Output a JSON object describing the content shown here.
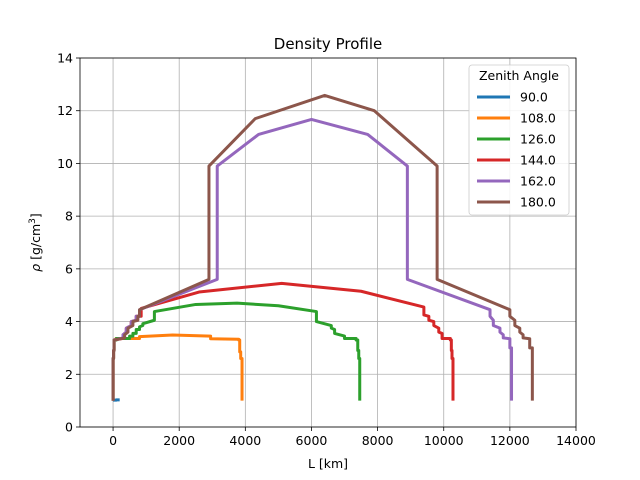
{
  "chart_data": {
    "type": "line",
    "title": "Density Profile",
    "xlabel": "L [km]",
    "ylabel_symbol": "ρ",
    "ylabel_unit": "[g/cm",
    "ylabel_sup": "3",
    "ylabel_close": "]",
    "xlim": [
      -1000,
      14000
    ],
    "ylim": [
      0,
      14
    ],
    "xticks": [
      0,
      2000,
      4000,
      6000,
      8000,
      10000,
      12000,
      14000
    ],
    "yticks": [
      0,
      2,
      4,
      6,
      8,
      10,
      12,
      14
    ],
    "grid": true,
    "legend": {
      "title": "Zenith Angle",
      "location": "upper right"
    },
    "series": [
      {
        "name": "90.0",
        "color": "#1f77b4",
        "points": [
          [
            0,
            1.02
          ],
          [
            100,
            1.02
          ],
          [
            100,
            1.03
          ],
          [
            200,
            1.03
          ]
        ]
      },
      {
        "name": "108.0",
        "color": "#ff7f0e",
        "points": [
          [
            0,
            1.0
          ],
          [
            0,
            2.6
          ],
          [
            15,
            2.6
          ],
          [
            15,
            2.9
          ],
          [
            30,
            2.9
          ],
          [
            30,
            3.3
          ],
          [
            90,
            3.3
          ],
          [
            90,
            3.36
          ],
          [
            800,
            3.36
          ],
          [
            800,
            3.43
          ],
          [
            1800,
            3.49
          ],
          [
            2950,
            3.45
          ],
          [
            2950,
            3.35
          ],
          [
            3800,
            3.33
          ],
          [
            3800,
            3.3
          ],
          [
            3830,
            3.3
          ],
          [
            3830,
            2.85
          ],
          [
            3860,
            2.85
          ],
          [
            3860,
            2.6
          ],
          [
            3900,
            2.6
          ],
          [
            3900,
            1.0
          ]
        ]
      },
      {
        "name": "126.0",
        "color": "#2ca02c",
        "points": [
          [
            0,
            1.0
          ],
          [
            0,
            2.6
          ],
          [
            15,
            2.6
          ],
          [
            15,
            2.9
          ],
          [
            30,
            2.9
          ],
          [
            30,
            3.3
          ],
          [
            100,
            3.3
          ],
          [
            100,
            3.36
          ],
          [
            500,
            3.36
          ],
          [
            500,
            3.45
          ],
          [
            600,
            3.45
          ],
          [
            600,
            3.55
          ],
          [
            700,
            3.55
          ],
          [
            700,
            3.7
          ],
          [
            800,
            3.7
          ],
          [
            800,
            3.8
          ],
          [
            900,
            3.85
          ],
          [
            900,
            3.92
          ],
          [
            1250,
            4.05
          ],
          [
            1250,
            4.38
          ],
          [
            2500,
            4.65
          ],
          [
            3750,
            4.7
          ],
          [
            5000,
            4.6
          ],
          [
            6150,
            4.38
          ],
          [
            6150,
            4.0
          ],
          [
            6600,
            3.85
          ],
          [
            6600,
            3.75
          ],
          [
            6700,
            3.7
          ],
          [
            6700,
            3.55
          ],
          [
            7000,
            3.45
          ],
          [
            7000,
            3.36
          ],
          [
            7350,
            3.36
          ],
          [
            7350,
            3.3
          ],
          [
            7400,
            3.3
          ],
          [
            7400,
            2.9
          ],
          [
            7430,
            2.9
          ],
          [
            7430,
            2.6
          ],
          [
            7460,
            2.6
          ],
          [
            7460,
            1.0
          ]
        ]
      },
      {
        "name": "144.0",
        "color": "#d62728",
        "points": [
          [
            0,
            1.0
          ],
          [
            0,
            2.6
          ],
          [
            15,
            2.6
          ],
          [
            15,
            2.9
          ],
          [
            30,
            2.9
          ],
          [
            30,
            3.3
          ],
          [
            300,
            3.36
          ],
          [
            300,
            3.5
          ],
          [
            400,
            3.6
          ],
          [
            400,
            3.75
          ],
          [
            550,
            3.85
          ],
          [
            550,
            4.0
          ],
          [
            700,
            4.05
          ],
          [
            700,
            4.2
          ],
          [
            850,
            4.2
          ],
          [
            850,
            4.5
          ],
          [
            2600,
            5.12
          ],
          [
            5100,
            5.45
          ],
          [
            7500,
            5.15
          ],
          [
            9400,
            4.55
          ],
          [
            9400,
            4.25
          ],
          [
            9550,
            4.2
          ],
          [
            9550,
            4.05
          ],
          [
            9700,
            4.0
          ],
          [
            9700,
            3.85
          ],
          [
            9850,
            3.75
          ],
          [
            9850,
            3.6
          ],
          [
            9950,
            3.55
          ],
          [
            9950,
            3.36
          ],
          [
            10200,
            3.36
          ],
          [
            10200,
            3.3
          ],
          [
            10230,
            3.3
          ],
          [
            10230,
            2.9
          ],
          [
            10250,
            2.9
          ],
          [
            10250,
            2.6
          ],
          [
            10280,
            2.6
          ],
          [
            10280,
            1.0
          ]
        ]
      },
      {
        "name": "162.0",
        "color": "#9467bd",
        "points": [
          [
            0,
            1.0
          ],
          [
            0,
            2.6
          ],
          [
            15,
            2.6
          ],
          [
            15,
            2.9
          ],
          [
            30,
            2.9
          ],
          [
            30,
            3.3
          ],
          [
            300,
            3.38
          ],
          [
            300,
            3.5
          ],
          [
            400,
            3.6
          ],
          [
            400,
            3.75
          ],
          [
            550,
            3.85
          ],
          [
            550,
            4.0
          ],
          [
            700,
            4.05
          ],
          [
            700,
            4.2
          ],
          [
            800,
            4.2
          ],
          [
            800,
            4.45
          ],
          [
            3150,
            5.6
          ],
          [
            3150,
            9.9
          ],
          [
            4400,
            11.1
          ],
          [
            6000,
            11.67
          ],
          [
            7700,
            11.1
          ],
          [
            8900,
            9.9
          ],
          [
            8900,
            5.6
          ],
          [
            11400,
            4.45
          ],
          [
            11400,
            4.2
          ],
          [
            11500,
            4.05
          ],
          [
            11500,
            3.85
          ],
          [
            11700,
            3.75
          ],
          [
            11700,
            3.6
          ],
          [
            11800,
            3.5
          ],
          [
            11800,
            3.38
          ],
          [
            12000,
            3.35
          ],
          [
            12000,
            3.0
          ],
          [
            12050,
            3.0
          ],
          [
            12050,
            1.0
          ]
        ]
      },
      {
        "name": "180.0",
        "color": "#8c564b",
        "points": [
          [
            0,
            1.0
          ],
          [
            0,
            2.6
          ],
          [
            15,
            2.6
          ],
          [
            15,
            2.9
          ],
          [
            30,
            2.9
          ],
          [
            30,
            3.3
          ],
          [
            350,
            3.38
          ],
          [
            350,
            3.5
          ],
          [
            450,
            3.6
          ],
          [
            450,
            3.75
          ],
          [
            600,
            3.85
          ],
          [
            600,
            4.0
          ],
          [
            750,
            4.05
          ],
          [
            750,
            4.2
          ],
          [
            800,
            4.2
          ],
          [
            800,
            4.45
          ],
          [
            2900,
            5.6
          ],
          [
            2900,
            9.9
          ],
          [
            4300,
            11.7
          ],
          [
            6400,
            12.58
          ],
          [
            7900,
            12.0
          ],
          [
            9800,
            9.9
          ],
          [
            9800,
            5.6
          ],
          [
            12000,
            4.45
          ],
          [
            12000,
            4.2
          ],
          [
            12150,
            4.05
          ],
          [
            12150,
            3.85
          ],
          [
            12300,
            3.75
          ],
          [
            12300,
            3.6
          ],
          [
            12400,
            3.5
          ],
          [
            12400,
            3.38
          ],
          [
            12600,
            3.35
          ],
          [
            12600,
            3.0
          ],
          [
            12680,
            3.0
          ],
          [
            12680,
            1.0
          ]
        ]
      }
    ]
  }
}
